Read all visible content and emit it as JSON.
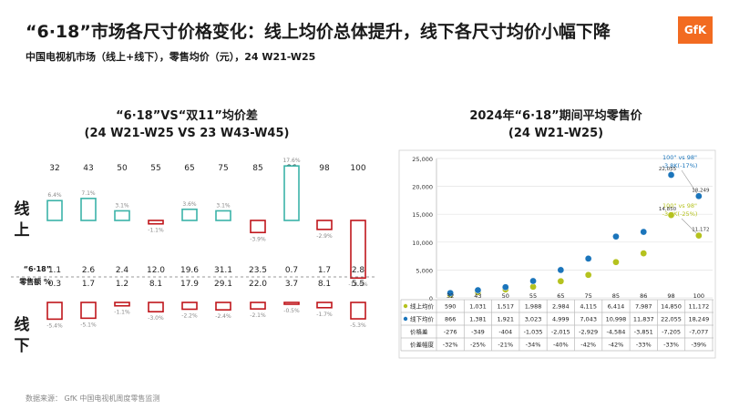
{
  "header": {
    "title": "“6·18”市场各尺寸价格变化：线上均价总体提升，线下各尺寸均价小幅下降",
    "subtitle": "中国电视机市场（线上+线下），零售均价（元），24 W21-W25",
    "logo_text": "GfK"
  },
  "source_note": "数据来源： GfK 中国电视机周度零售监测",
  "colors": {
    "online_teal": "#3bb3a8",
    "offline_red": "#c0161c",
    "online_yellow": "#b5c21e",
    "offline_blue": "#1b75bb"
  },
  "chart_data": [
    {
      "type": "bar",
      "title_line1": "“6·18”VS“双11”均价差",
      "title_line2": "(24 W21-W25 VS 23 W43-W45)",
      "categories": [
        "32",
        "43",
        "50",
        "55",
        "65",
        "75",
        "85",
        "86",
        "98",
        "100"
      ],
      "series": [
        {
          "name": "线上",
          "values": [
            6.4,
            7.1,
            3.1,
            -1.1,
            3.6,
            3.1,
            -3.9,
            17.6,
            -2.9,
            -18.6
          ],
          "labels": [
            "6.4%",
            "7.1%",
            "3.1%",
            "-1.1%",
            "3.6%",
            "3.1%",
            "-3.9%",
            "17.6%",
            "-2.9%",
            "-18.6%"
          ]
        },
        {
          "name": "线下",
          "values": [
            -5.4,
            -5.1,
            -1.1,
            -3.0,
            -2.2,
            -2.4,
            -2.1,
            -0.5,
            -1.7,
            -5.3
          ],
          "labels": [
            "-5.4%",
            "-5.1%",
            "-1.1%",
            "-3.0%",
            "-2.2%",
            "-2.4%",
            "-2.1%",
            "-0.5%",
            "-1.7%",
            "-5.3%"
          ]
        }
      ],
      "share_label_line1": "“6·18”",
      "share_label_line2": "零售额 %",
      "share_online": [
        "1.1",
        "2.6",
        "2.4",
        "12.0",
        "19.6",
        "31.1",
        "23.5",
        "0.7",
        "1.7",
        "2.8"
      ],
      "share_offline": [
        "0.3",
        "1.7",
        "1.2",
        "8.1",
        "17.9",
        "29.1",
        "22.0",
        "3.7",
        "8.1",
        "5.5"
      ],
      "online_label": [
        "线",
        "上"
      ],
      "offline_label": [
        "线",
        "下"
      ]
    },
    {
      "type": "scatter",
      "title_line1": "2024年“6·18”期间平均零售价",
      "title_line2": "(24 W21-W25)",
      "categories": [
        "32",
        "43",
        "50",
        "55",
        "65",
        "75",
        "85",
        "86",
        "98",
        "100"
      ],
      "ylim": [
        0,
        25000
      ],
      "yticks": [
        "0",
        "5,000",
        "10,000",
        "15,000",
        "20,000",
        "25,000"
      ],
      "series": [
        {
          "name": "线上均价",
          "values": [
            590,
            1031,
            1517,
            1988,
            2984,
            4115,
            6414,
            7987,
            14850,
            11172
          ],
          "cells": [
            "590",
            "1,031",
            "1,517",
            "1,988",
            "2,984",
            "4,115",
            "6,414",
            "7,987",
            "14,850",
            "11,172"
          ]
        },
        {
          "name": "线下均价",
          "values": [
            866,
            1381,
            1921,
            3023,
            4999,
            7043,
            10998,
            11837,
            22055,
            18249
          ],
          "cells": [
            "866",
            "1,381",
            "1,921",
            "3,023",
            "4,999",
            "7,043",
            "10,998",
            "11,837",
            "22,055",
            "18,249"
          ]
        }
      ],
      "table_rows": [
        {
          "name": "价格差",
          "cells": [
            "-276",
            "-349",
            "-404",
            "-1,035",
            "-2,015",
            "-2,929",
            "-4,584",
            "-3,851",
            "-7,205",
            "-7,077"
          ]
        },
        {
          "name": "价差幅度",
          "cells": [
            "-32%",
            "-25%",
            "-21%",
            "-34%",
            "-40%",
            "-42%",
            "-42%",
            "-33%",
            "-33%",
            "-39%"
          ]
        }
      ],
      "point_labels": [
        {
          "series": 1,
          "index": 8,
          "text": "22,055"
        },
        {
          "series": 1,
          "index": 9,
          "text": "18,249"
        },
        {
          "series": 0,
          "index": 8,
          "text": "14,850"
        },
        {
          "series": 0,
          "index": 9,
          "text": "11,172"
        }
      ],
      "annotations": [
        {
          "series": 1,
          "line1": "100\" vs 98\"",
          "line2": "-3.8K(-17%)"
        },
        {
          "series": 0,
          "line1": "100\" vs 98\"",
          "line2": "-3.7K(-25%)"
        }
      ]
    }
  ]
}
